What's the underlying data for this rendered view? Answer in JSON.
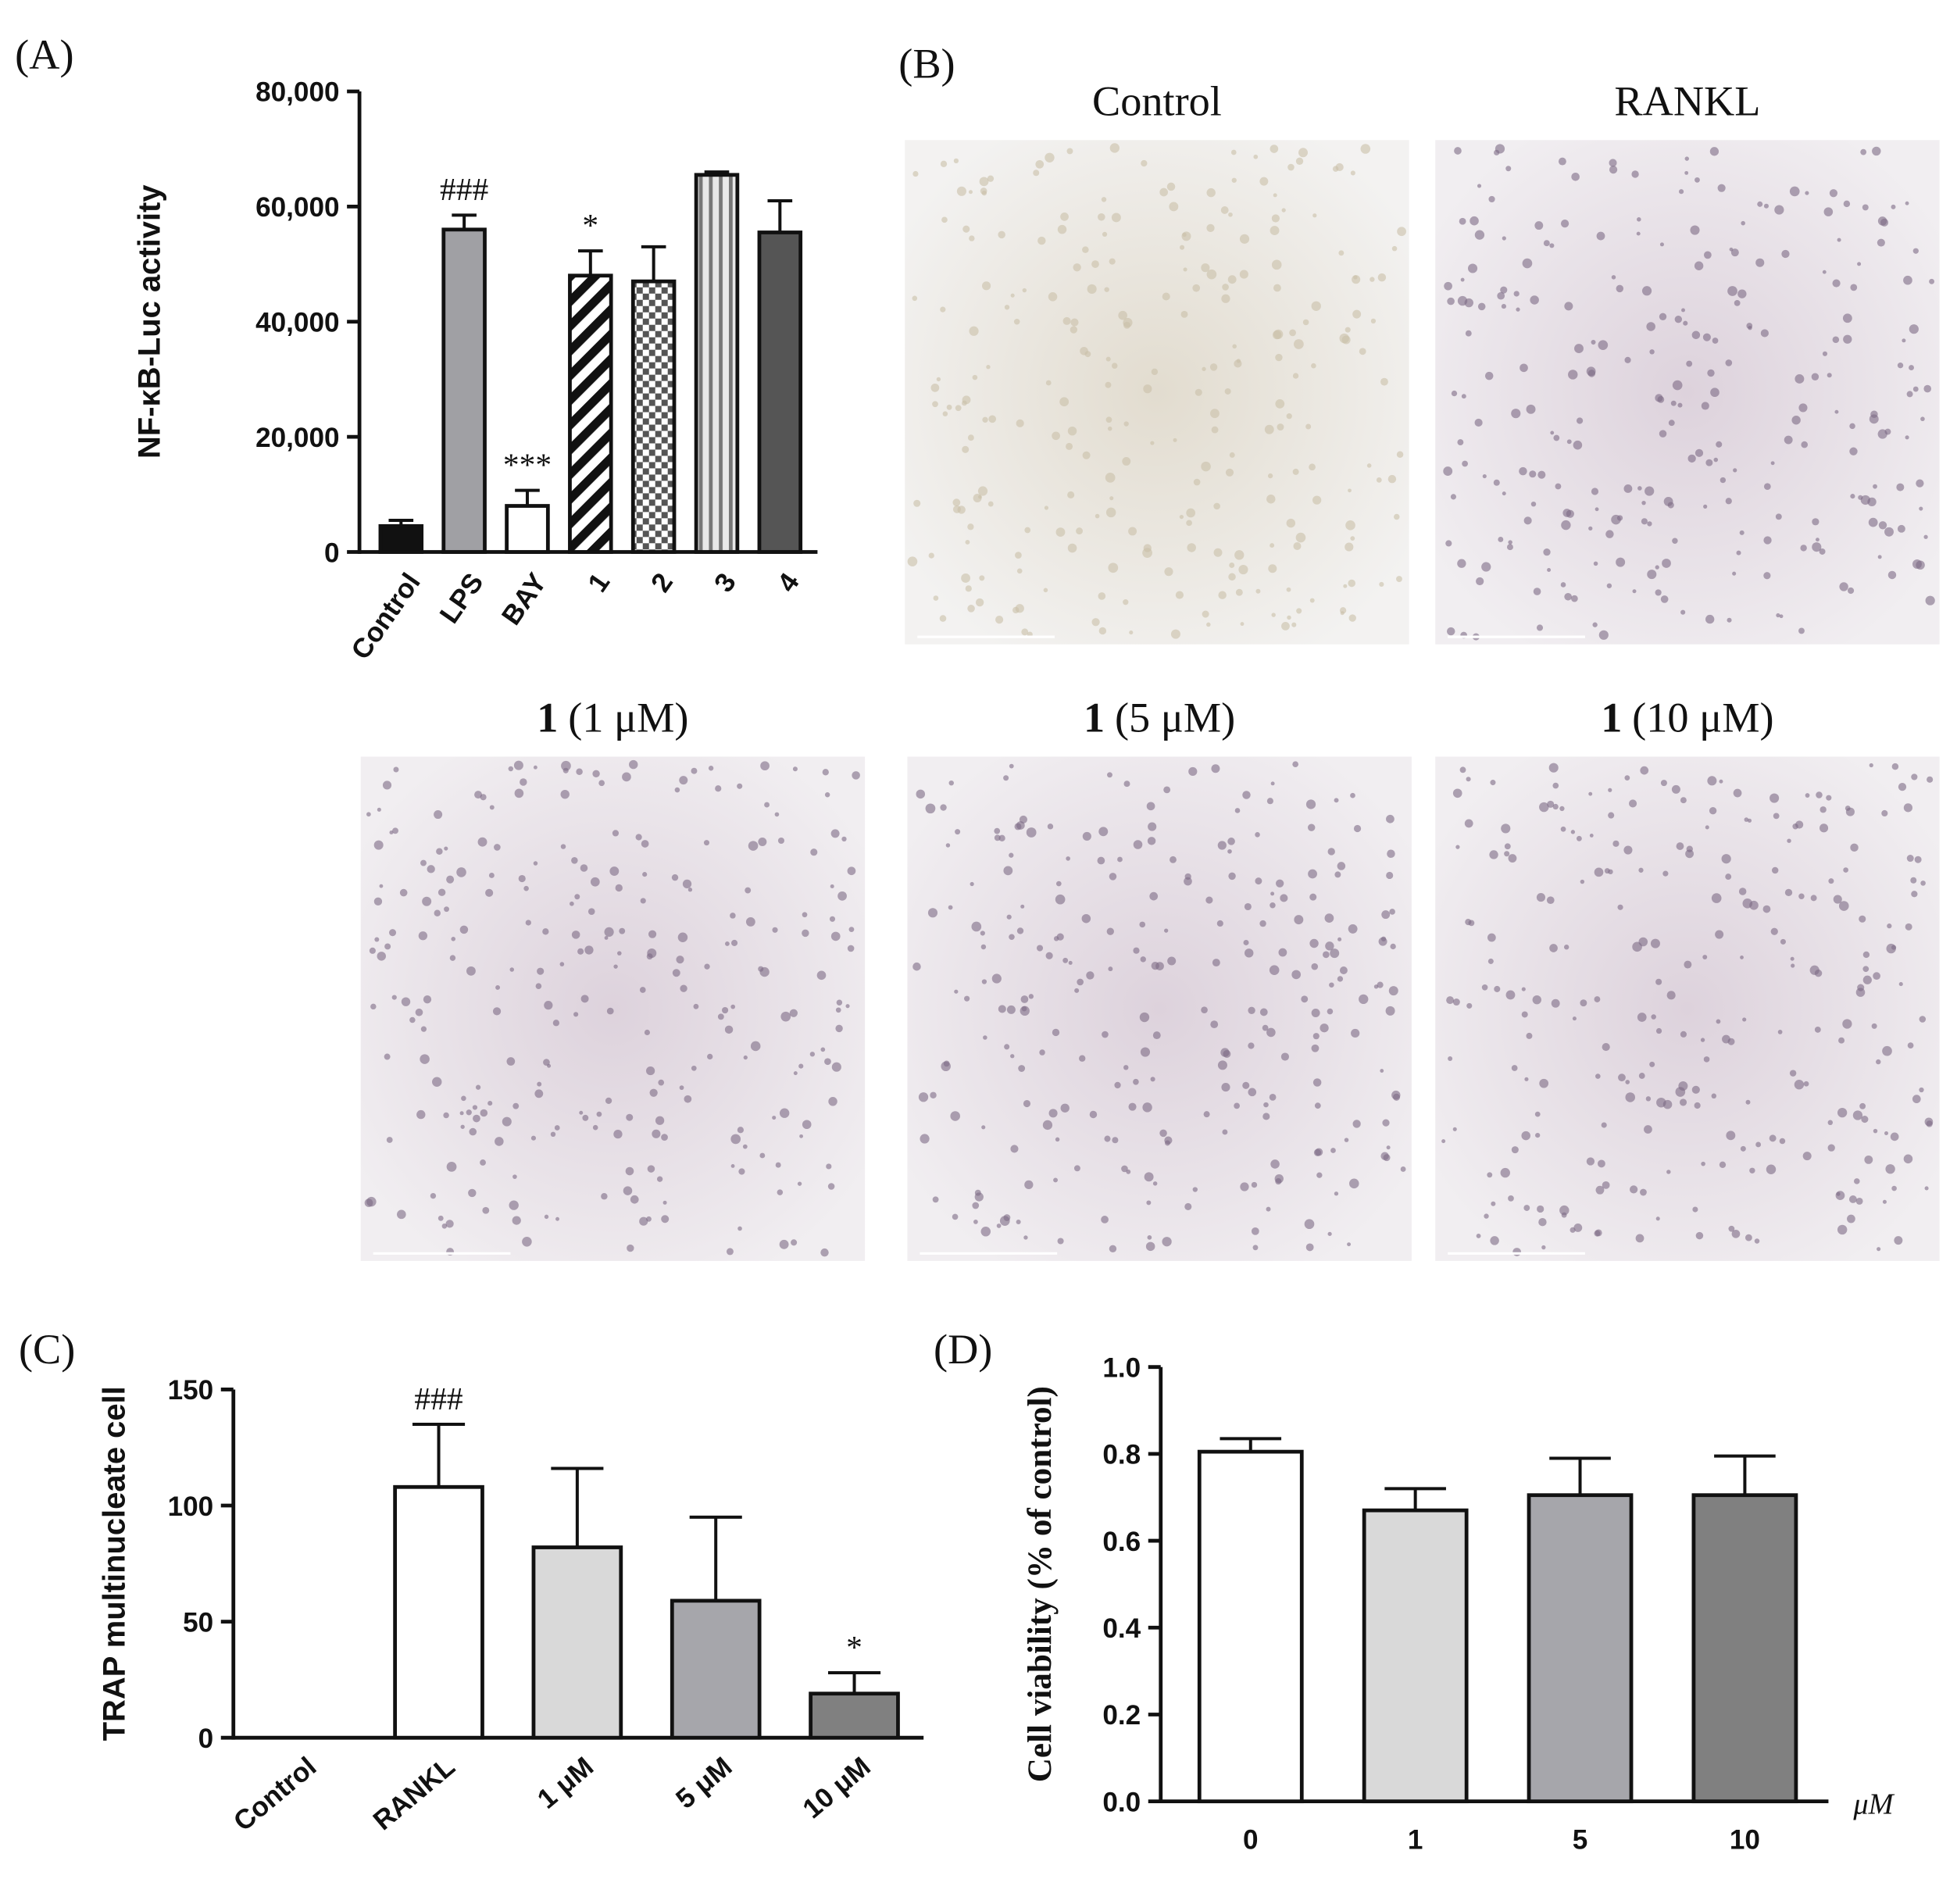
{
  "chart_data": [
    {
      "type": "bar",
      "panel_label": "(A)",
      "ylabel": "NF-κB-Luc activity",
      "categories": [
        "Control",
        "LPS",
        "BAY",
        "1",
        "2",
        "3",
        "4"
      ],
      "values": [
        4500,
        56000,
        8000,
        48000,
        47000,
        65500,
        55500
      ],
      "errors": [
        1000,
        2500,
        2700,
        4300,
        6000,
        500,
        5500
      ],
      "value_annotations": [
        null,
        "###",
        "***",
        "*",
        null,
        null,
        null
      ],
      "fills": [
        "#111111",
        "#a0a0a4",
        "#ffffff",
        "hatch",
        "checker",
        "stripes",
        "#555555"
      ],
      "ylim": [
        0,
        80000
      ],
      "yticks": [
        {
          "value": 0,
          "label": "0"
        },
        {
          "value": 20000,
          "label": "20,000"
        },
        {
          "value": 40000,
          "label": "40,000"
        },
        {
          "value": 60000,
          "label": "60,000"
        },
        {
          "value": 80000,
          "label": "80,000"
        }
      ]
    },
    {
      "type": "bar",
      "panel_label": "(C)",
      "ylabel": "TRAP multinucleate cell",
      "categories": [
        "Control",
        "RANKL",
        "1 μM",
        "5 μM",
        "10 μM"
      ],
      "values": [
        0,
        108,
        82,
        59,
        19
      ],
      "errors": [
        null,
        27,
        34,
        36,
        9
      ],
      "value_annotations": [
        null,
        "###",
        null,
        null,
        "*"
      ],
      "fills": [
        "#ffffff",
        "#ffffff",
        "#d9d9d9",
        "#a6a6ab",
        "#808080"
      ],
      "ylim": [
        0,
        150
      ],
      "yticks": [
        0,
        50,
        100,
        150
      ]
    },
    {
      "type": "bar",
      "panel_label": "(D)",
      "ylabel": "Cell viability (% of control)",
      "xunit": "μM",
      "categories": [
        "0",
        "1",
        "5",
        "10"
      ],
      "values": [
        0.805,
        0.67,
        0.705,
        0.705
      ],
      "errors": [
        0.03,
        0.05,
        0.085,
        0.09
      ],
      "fills": [
        "#ffffff",
        "#d9d9d9",
        "#a6a6ab",
        "#808080"
      ],
      "ylim": [
        0,
        1
      ],
      "yticks": [
        {
          "value": 0,
          "label": "0.0"
        },
        0.2,
        0.4,
        0.6,
        0.8,
        {
          "value": 1,
          "label": "1.0"
        }
      ]
    }
  ],
  "micrographs": {
    "panel_label": "(B)",
    "images": [
      {
        "compound": "",
        "label": "Control"
      },
      {
        "compound": "",
        "label": "RANKL"
      },
      {
        "compound": "1",
        "label": "(1 μM)"
      },
      {
        "compound": "1",
        "label": "(5 μM)"
      },
      {
        "compound": "1",
        "label": "(10 μM)"
      }
    ]
  }
}
